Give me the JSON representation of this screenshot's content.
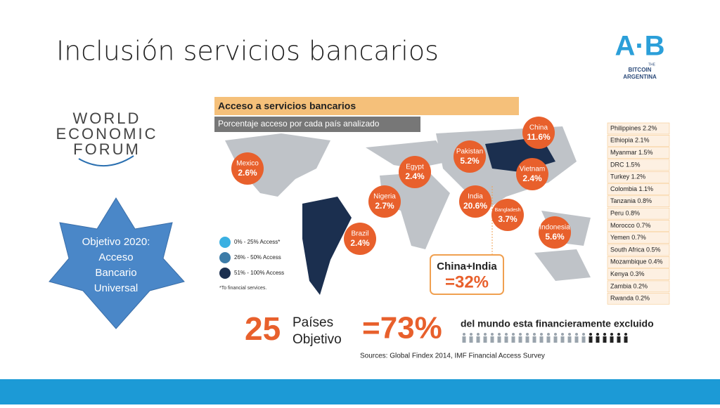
{
  "header": {
    "title": "Inclusión servicios bancarios"
  },
  "logo": {
    "mark": "A·B",
    "small": "THE",
    "lines": [
      "BITCOIN",
      "ARGENTINA"
    ]
  },
  "wef_logo": {
    "lines": [
      "WORLD",
      "ECONOMIC",
      "FORUM"
    ]
  },
  "goal": {
    "lines": [
      "Objetivo 2020:",
      "Acceso",
      "Bancario",
      "Universal"
    ]
  },
  "infographic": {
    "title": "Acceso a servicios bancarios",
    "subtitle": "Porcentaje acceso por cada país analizado",
    "bubbles": [
      {
        "label": "Mexico",
        "value": "2.6%"
      },
      {
        "label": "Brazil",
        "value": "2.4%"
      },
      {
        "label": "Nigeria",
        "value": "2.7%"
      },
      {
        "label": "Egypt",
        "value": "2.4%"
      },
      {
        "label": "Pakistan",
        "value": "5.2%"
      },
      {
        "label": "India",
        "value": "20.6%"
      },
      {
        "label": "Bangladesh",
        "value": "3.7%"
      },
      {
        "label": "China",
        "value": "11.6%"
      },
      {
        "label": "Vietnam",
        "value": "2.4%"
      },
      {
        "label": "Indonesia",
        "value": "5.6%"
      }
    ],
    "legend": [
      "0% - 25% Access*",
      "26% - 50% Access",
      "51% - 100% Access"
    ],
    "footnote": "*To financial services.",
    "list": [
      "Philippines 2.2%",
      "Ethiopia 2.1%",
      "Myanmar 1.5%",
      "DRC 1.5%",
      "Turkey 1.2%",
      "Colombia 1.1%",
      "Tanzania 0.8%",
      "Peru 0.8%",
      "Morocco 0.7%",
      "Yemen 0.7%",
      "South Africa 0.5%",
      "Mozambique 0.4%",
      "Kenya 0.3%",
      "Zambia 0.2%",
      "Rwanda 0.2%"
    ],
    "combined": {
      "label": "China+India",
      "value": "=32%"
    },
    "targets": {
      "number": "25",
      "lines": [
        "Países",
        "Objetivo"
      ]
    },
    "excluded": {
      "value": "=73%",
      "text": "del mundo esta financieramente excluido"
    },
    "sources": "Sources: Global Findex 2014, IMF Financial Access Survey"
  }
}
